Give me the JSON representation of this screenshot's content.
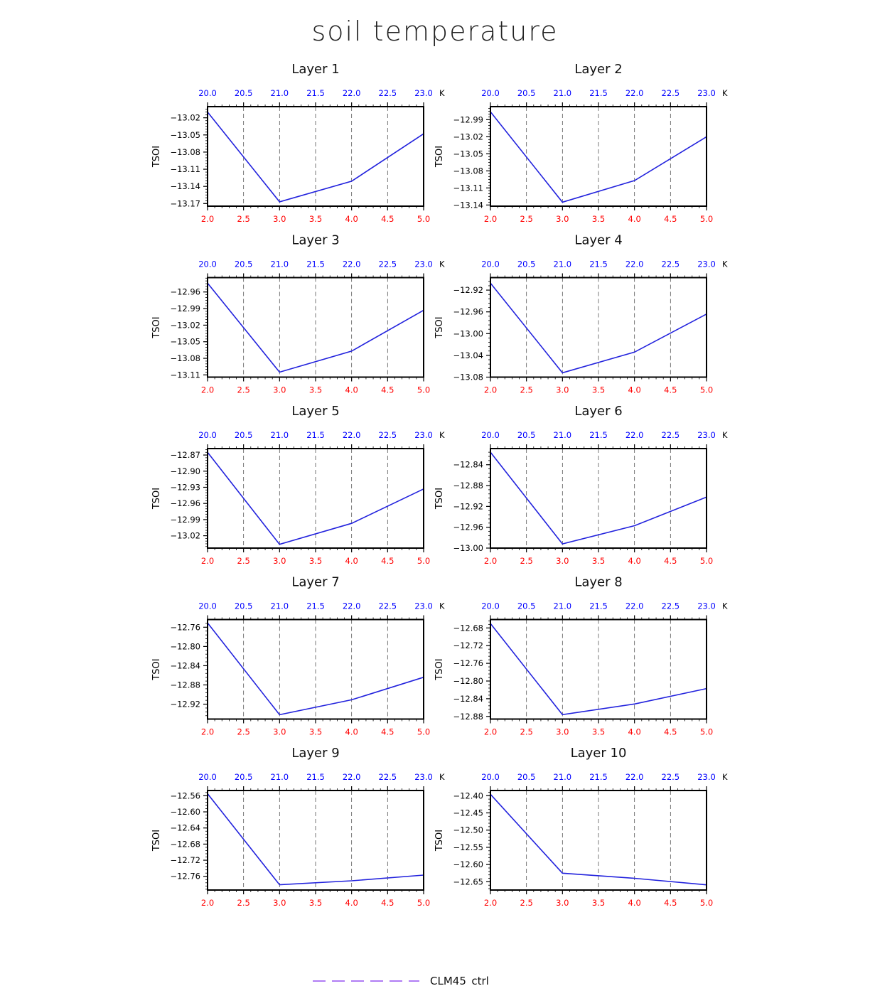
{
  "chart_data": {
    "title": "soil temperature",
    "type": "line",
    "grid": "vertical dashed lines at major x ticks",
    "legend": {
      "placement": "bottom-center",
      "entries": [
        {
          "name": "CLM45_ctrl",
          "color": "#b07cf4",
          "style": "dashed"
        }
      ]
    },
    "line_color": "#2222dd",
    "bottom_axis_color": "#ff0000",
    "top_axis_color": "#0000ff",
    "top_axis_label": "K",
    "top_ticks": [
      "20.0",
      "20.5",
      "21.0",
      "21.5",
      "22.0",
      "22.5",
      "23.0"
    ],
    "bottom_ticks": [
      "2.0",
      "2.5",
      "3.0",
      "3.5",
      "4.0",
      "4.5",
      "5.0"
    ],
    "xlim": [
      2.0,
      5.0
    ],
    "top_xlim": [
      20.0,
      23.0
    ],
    "panels": [
      {
        "title": "Layer 1",
        "ylabel": "TSOI",
        "ylim": [
          -13.1746,
          -13.0005
        ],
        "yticks": [
          "-13.02",
          "-13.05",
          "-13.08",
          "-13.11",
          "-13.14",
          "-13.17"
        ],
        "x": [
          2,
          3,
          4,
          5
        ],
        "y": [
          -13.01,
          -13.167,
          -13.131,
          -13.048
        ]
      },
      {
        "title": "Layer 2",
        "ylabel": "TSOI",
        "ylim": [
          -13.142,
          -12.967
        ],
        "yticks": [
          "-12.99",
          "-13.02",
          "-13.05",
          "-13.08",
          "-13.11",
          "-13.14"
        ],
        "x": [
          2,
          3,
          4,
          5
        ],
        "y": [
          -12.976,
          -13.135,
          -13.097,
          -13.02
        ]
      },
      {
        "title": "Layer 3",
        "ylabel": "TSOI",
        "ylim": [
          -13.114,
          -12.934
        ],
        "yticks": [
          "-12.96",
          "-12.99",
          "-13.02",
          "-13.05",
          "-13.08",
          "-13.11"
        ],
        "x": [
          2,
          3,
          4,
          5
        ],
        "y": [
          -12.944,
          -13.105,
          -13.067,
          -12.993
        ]
      },
      {
        "title": "Layer 4",
        "ylabel": "TSOI",
        "ylim": [
          -13.08,
          -12.897
        ],
        "yticks": [
          "-12.92",
          "-12.96",
          "-13.00",
          "-13.04",
          "-13.08"
        ],
        "x": [
          2,
          3,
          4,
          5
        ],
        "y": [
          -12.907,
          -13.072,
          -13.034,
          -12.964
        ]
      },
      {
        "title": "Layer 5",
        "ylabel": "TSOI",
        "ylim": [
          -13.043,
          -12.858
        ],
        "yticks": [
          "-12.87",
          "-12.90",
          "-12.93",
          "-12.96",
          "-12.99",
          "-13.02"
        ],
        "x": [
          2,
          3,
          4,
          5
        ],
        "y": [
          -12.865,
          -13.036,
          -12.997,
          -12.933
        ]
      },
      {
        "title": "Layer 6",
        "ylabel": "TSOI",
        "ylim": [
          -13.0,
          -12.809
        ],
        "yticks": [
          "-12.84",
          "-12.88",
          "-12.92",
          "-12.96",
          "-13.00"
        ],
        "x": [
          2,
          3,
          4,
          5
        ],
        "y": [
          -12.816,
          -12.992,
          -12.957,
          -12.902
        ]
      },
      {
        "title": "Layer 7",
        "ylabel": "TSOI",
        "ylim": [
          -12.951,
          -12.744
        ],
        "yticks": [
          "-12.76",
          "-12.80",
          "-12.84",
          "-12.88",
          "-12.92"
        ],
        "x": [
          2,
          3,
          4,
          5
        ],
        "y": [
          -12.751,
          -12.942,
          -12.911,
          -12.864
        ]
      },
      {
        "title": "Layer 8",
        "ylabel": "TSOI",
        "ylim": [
          -12.886,
          -12.661
        ],
        "yticks": [
          "-12.68",
          "-12.72",
          "-12.76",
          "-12.80",
          "-12.84",
          "-12.88"
        ],
        "x": [
          2,
          3,
          4,
          5
        ],
        "y": [
          -12.67,
          -12.876,
          -12.852,
          -12.817
        ]
      },
      {
        "title": "Layer 9",
        "ylabel": "TSOI",
        "ylim": [
          -12.794,
          -12.547
        ],
        "yticks": [
          "-12.56",
          "-12.60",
          "-12.64",
          "-12.68",
          "-12.72",
          "-12.76"
        ],
        "x": [
          2,
          3,
          4,
          5
        ],
        "y": [
          -12.555,
          -12.781,
          -12.771,
          -12.757
        ]
      },
      {
        "title": "Layer 10",
        "ylabel": "TSOI",
        "ylim": [
          -12.674,
          -12.385
        ],
        "yticks": [
          "-12.40",
          "-12.45",
          "-12.50",
          "-12.55",
          "-12.60",
          "-12.65"
        ],
        "x": [
          2,
          3,
          4,
          5
        ],
        "y": [
          -12.396,
          -12.625,
          -12.64,
          -12.659
        ]
      }
    ]
  }
}
